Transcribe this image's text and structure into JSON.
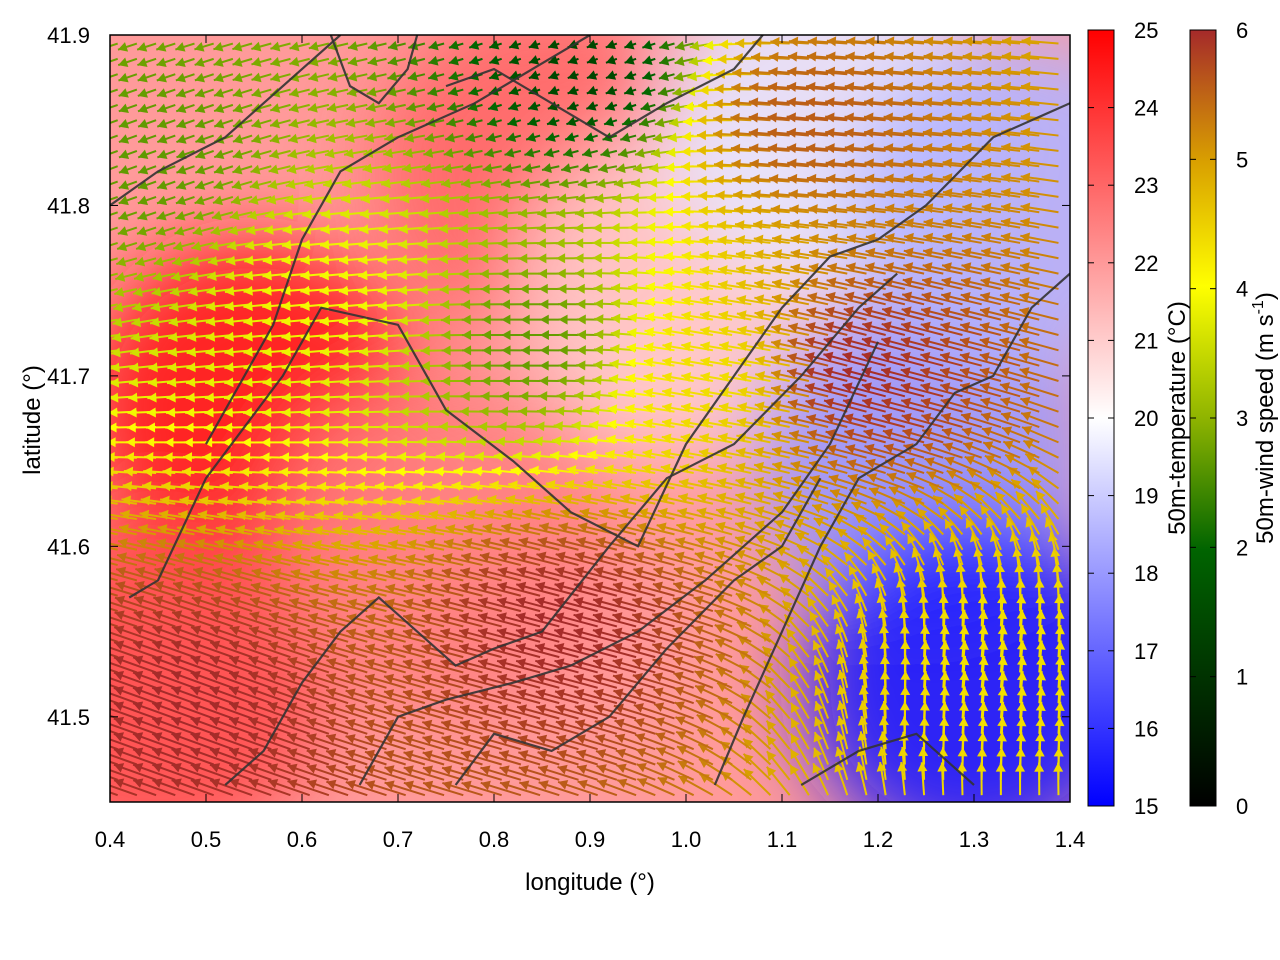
{
  "chart_data": {
    "type": "heatmap",
    "title": "",
    "xlabel": "longitude (°)",
    "ylabel": "latitude (°)",
    "xlim": [
      0.4,
      1.4
    ],
    "ylim": [
      41.45,
      41.9
    ],
    "x_ticks": [
      "0.4",
      "0.5",
      "0.6",
      "0.7",
      "0.8",
      "0.9",
      "1.0",
      "1.1",
      "1.2",
      "1.3",
      "1.4"
    ],
    "y_ticks": [
      "41.5",
      "41.6",
      "41.7",
      "41.8",
      "41.9"
    ],
    "overlay": "wind-vectors colored by speed with black contour lines",
    "colorbars": [
      {
        "name": "50m-temperature (°C)",
        "unit": "°C",
        "range": [
          15,
          25
        ],
        "ticks": [
          "15",
          "16",
          "17",
          "18",
          "19",
          "20",
          "21",
          "22",
          "23",
          "24",
          "25"
        ],
        "colors": [
          "#0000ff",
          "#ffffff",
          "#ff0000"
        ]
      },
      {
        "name": "50m-wind speed (m s",
        "unit_sup": "-1",
        "unit_close": ")",
        "range": [
          0,
          6
        ],
        "ticks": [
          "0",
          "1",
          "2",
          "3",
          "4",
          "5",
          "6"
        ],
        "colors": [
          "#000000",
          "#006400",
          "#8fb400",
          "#ffff00",
          "#d9a000",
          "#a52a2a"
        ]
      }
    ],
    "temperature_regions": [
      {
        "lon": 0.55,
        "lat": 41.68,
        "temp": 24.5
      },
      {
        "lon": 0.45,
        "lat": 41.52,
        "temp": 23.5
      },
      {
        "lon": 0.85,
        "lat": 41.82,
        "temp": 23.0
      },
      {
        "lon": 0.75,
        "lat": 41.6,
        "temp": 22.5
      },
      {
        "lon": 1.0,
        "lat": 41.75,
        "temp": 21.0
      },
      {
        "lon": 1.15,
        "lat": 41.85,
        "temp": 19.5
      },
      {
        "lon": 1.25,
        "lat": 41.65,
        "temp": 18.0
      },
      {
        "lon": 1.3,
        "lat": 41.52,
        "temp": 15.5
      },
      {
        "lon": 1.35,
        "lat": 41.8,
        "temp": 18.5
      }
    ],
    "wind_regions": [
      {
        "lon": 0.5,
        "lat": 41.5,
        "speed": 6.0,
        "dir_deg": 160
      },
      {
        "lon": 0.9,
        "lat": 41.55,
        "speed": 6.0,
        "dir_deg": 165
      },
      {
        "lon": 1.2,
        "lat": 41.7,
        "speed": 6.0,
        "dir_deg": 165
      },
      {
        "lon": 1.15,
        "lat": 41.85,
        "speed": 5.5,
        "dir_deg": 175
      },
      {
        "lon": 0.65,
        "lat": 41.75,
        "speed": 3.5,
        "dir_deg": 185
      },
      {
        "lon": 0.85,
        "lat": 41.72,
        "speed": 2.0,
        "dir_deg": 180
      },
      {
        "lon": 0.9,
        "lat": 41.88,
        "speed": 0.8,
        "dir_deg": 200
      },
      {
        "lon": 0.45,
        "lat": 41.83,
        "speed": 2.0,
        "dir_deg": 200
      },
      {
        "lon": 1.05,
        "lat": 41.7,
        "speed": 4.0,
        "dir_deg": 170
      },
      {
        "lon": 1.32,
        "lat": 41.52,
        "speed": 4.0,
        "dir_deg": 85
      }
    ],
    "contours": [
      [
        [
          0.42,
          41.57
        ],
        [
          0.45,
          41.58
        ],
        [
          0.5,
          41.64
        ],
        [
          0.58,
          41.7
        ],
        [
          0.62,
          41.74
        ],
        [
          0.7,
          41.73
        ],
        [
          0.75,
          41.68
        ],
        [
          0.82,
          41.65
        ],
        [
          0.88,
          41.62
        ],
        [
          0.95,
          41.6
        ],
        [
          1.0,
          41.66
        ],
        [
          1.05,
          41.7
        ],
        [
          1.1,
          41.74
        ],
        [
          1.15,
          41.77
        ],
        [
          1.2,
          41.78
        ],
        [
          1.25,
          41.8
        ],
        [
          1.32,
          41.84
        ],
        [
          1.4,
          41.86
        ]
      ],
      [
        [
          0.52,
          41.46
        ],
        [
          0.56,
          41.48
        ],
        [
          0.6,
          41.52
        ],
        [
          0.64,
          41.55
        ],
        [
          0.68,
          41.57
        ],
        [
          0.72,
          41.55
        ],
        [
          0.76,
          41.53
        ],
        [
          0.8,
          41.54
        ],
        [
          0.85,
          41.55
        ],
        [
          0.92,
          41.6
        ],
        [
          0.98,
          41.64
        ],
        [
          1.05,
          41.66
        ],
        [
          1.12,
          41.7
        ],
        [
          1.18,
          41.74
        ],
        [
          1.22,
          41.76
        ]
      ],
      [
        [
          0.66,
          41.46
        ],
        [
          0.7,
          41.5
        ],
        [
          0.75,
          41.51
        ],
        [
          0.82,
          41.52
        ],
        [
          0.88,
          41.53
        ],
        [
          0.95,
          41.55
        ],
        [
          1.02,
          41.58
        ],
        [
          1.1,
          41.62
        ],
        [
          1.15,
          41.66
        ],
        [
          1.2,
          41.72
        ]
      ],
      [
        [
          0.76,
          41.46
        ],
        [
          0.8,
          41.49
        ],
        [
          0.86,
          41.48
        ],
        [
          0.92,
          41.5
        ],
        [
          0.98,
          41.54
        ],
        [
          1.05,
          41.58
        ],
        [
          1.1,
          41.6
        ],
        [
          1.14,
          41.64
        ]
      ],
      [
        [
          1.03,
          41.46
        ],
        [
          1.06,
          41.5
        ],
        [
          1.1,
          41.55
        ],
        [
          1.14,
          41.6
        ],
        [
          1.18,
          41.64
        ],
        [
          1.24,
          41.66
        ],
        [
          1.28,
          41.69
        ],
        [
          1.32,
          41.7
        ],
        [
          1.36,
          41.74
        ],
        [
          1.4,
          41.76
        ]
      ],
      [
        [
          1.12,
          41.46
        ],
        [
          1.18,
          41.48
        ],
        [
          1.24,
          41.49
        ],
        [
          1.28,
          41.47
        ],
        [
          1.3,
          41.46
        ]
      ],
      [
        [
          0.5,
          41.66
        ],
        [
          0.54,
          41.7
        ],
        [
          0.57,
          41.73
        ],
        [
          0.6,
          41.78
        ],
        [
          0.64,
          41.82
        ],
        [
          0.7,
          41.84
        ],
        [
          0.78,
          41.86
        ],
        [
          0.84,
          41.88
        ],
        [
          0.9,
          41.9
        ]
      ],
      [
        [
          0.4,
          41.8
        ],
        [
          0.45,
          41.82
        ],
        [
          0.52,
          41.84
        ],
        [
          0.56,
          41.86
        ],
        [
          0.6,
          41.88
        ],
        [
          0.64,
          41.9
        ]
      ],
      [
        [
          0.75,
          41.87
        ],
        [
          0.8,
          41.88
        ],
        [
          0.86,
          41.86
        ],
        [
          0.92,
          41.84
        ],
        [
          0.98,
          41.86
        ],
        [
          1.05,
          41.88
        ],
        [
          1.08,
          41.9
        ]
      ],
      [
        [
          0.63,
          41.9
        ],
        [
          0.65,
          41.87
        ],
        [
          0.68,
          41.86
        ],
        [
          0.71,
          41.88
        ],
        [
          0.72,
          41.9
        ]
      ]
    ]
  }
}
